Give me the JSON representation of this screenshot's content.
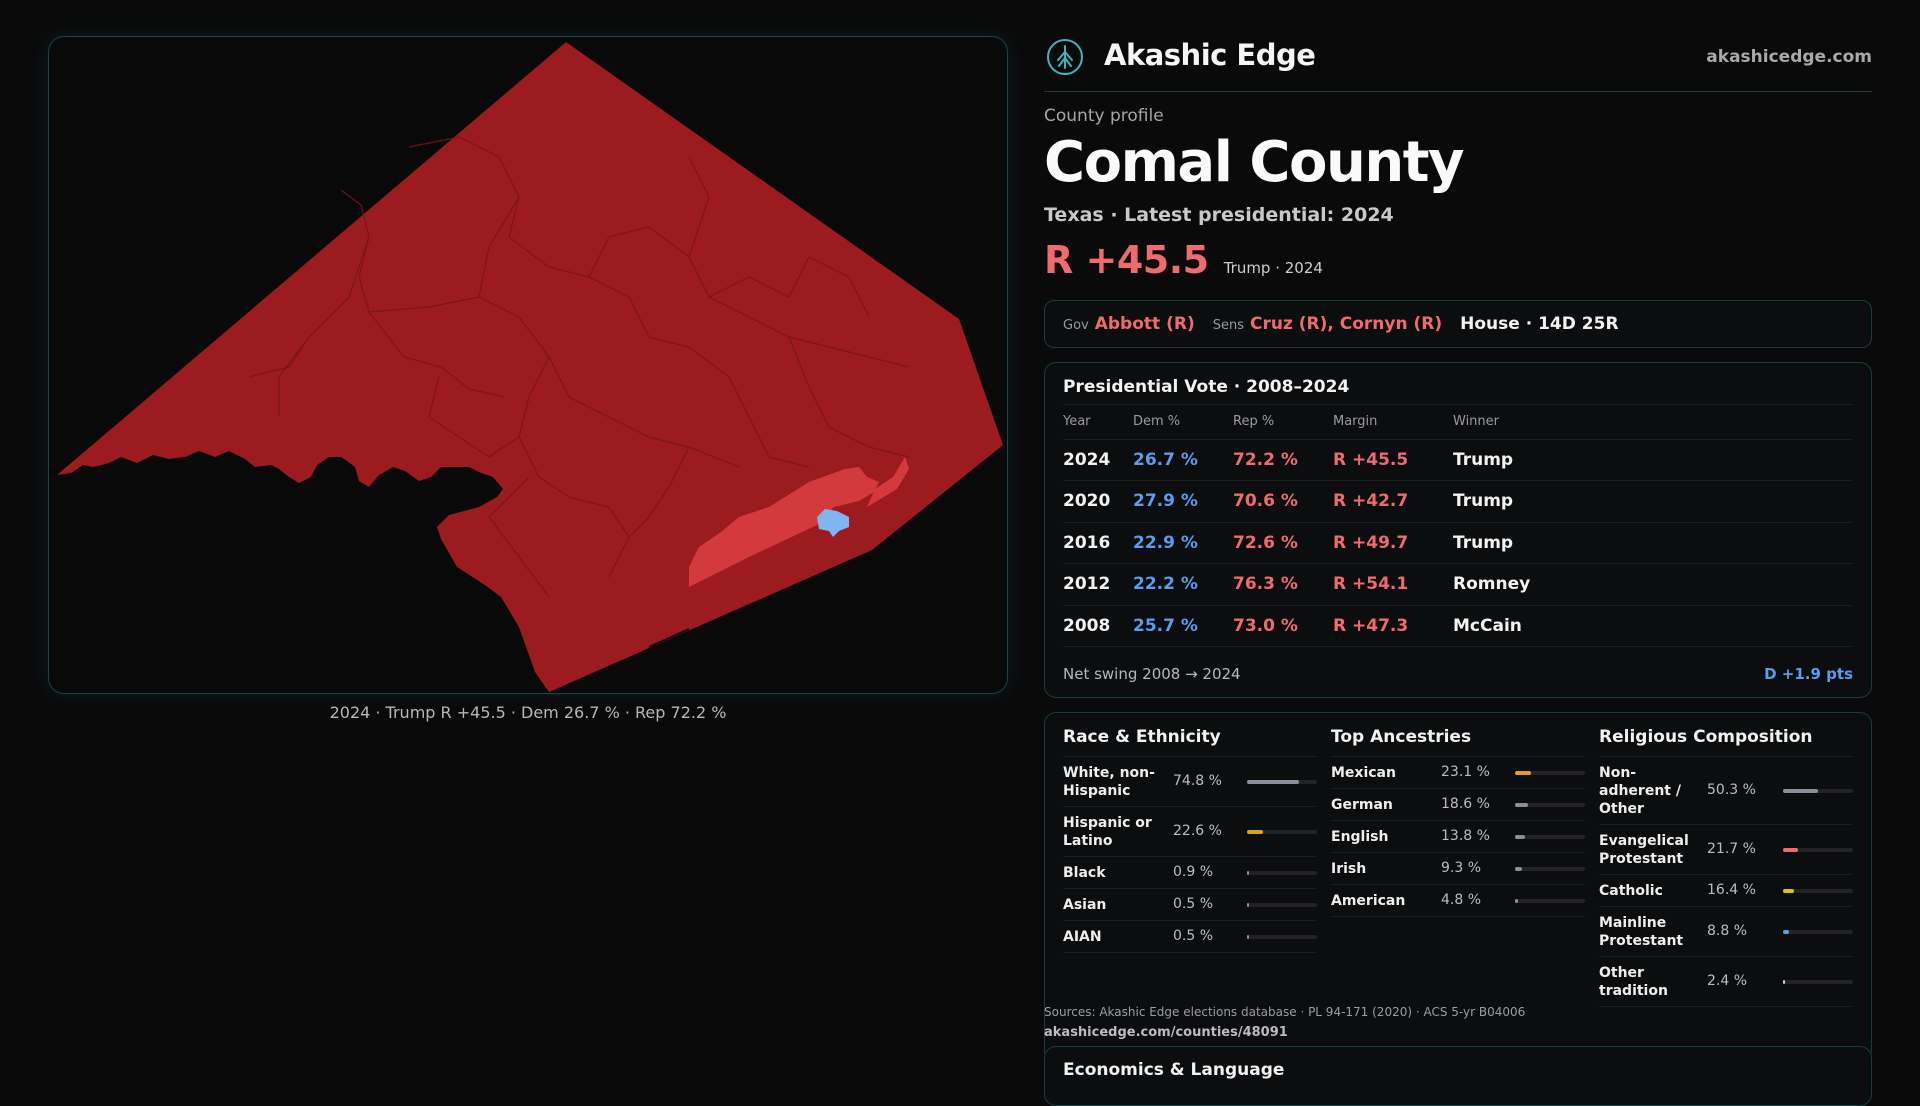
{
  "brand": {
    "name": "Akashic Edge",
    "url": "akashicedge.com",
    "logo_icon": "tree-circle-icon"
  },
  "profile": {
    "kicker": "County profile",
    "title": "Comal County",
    "subline": "Texas · Latest presidential: 2024",
    "margin": "R +45.5",
    "margin_note": "Trump · 2024"
  },
  "officials": {
    "gov_label": "Gov",
    "gov": "Abbott (R)",
    "sens_label": "Sens",
    "sens": "Cruz (R), Cornyn (R)",
    "house": "House · 14D 25R"
  },
  "presidential": {
    "title": "Presidential Vote · 2008–2024",
    "headers": [
      "Year",
      "Dem %",
      "Rep %",
      "Margin",
      "Winner"
    ],
    "rows": [
      {
        "year": "2024",
        "dem": "26.7 %",
        "rep": "72.2 %",
        "margin": "R +45.5",
        "winner": "Trump"
      },
      {
        "year": "2020",
        "dem": "27.9 %",
        "rep": "70.6 %",
        "margin": "R +42.7",
        "winner": "Trump"
      },
      {
        "year": "2016",
        "dem": "22.9 %",
        "rep": "72.6 %",
        "margin": "R +49.7",
        "winner": "Trump"
      },
      {
        "year": "2012",
        "dem": "22.2 %",
        "rep": "76.3 %",
        "margin": "R +54.1",
        "winner": "Romney"
      },
      {
        "year": "2008",
        "dem": "25.7 %",
        "rep": "73.0 %",
        "margin": "R +47.3",
        "winner": "McCain"
      }
    ],
    "swing_label": "Net swing 2008 → 2024",
    "swing_value": "D +1.9 pts"
  },
  "race": {
    "title": "Race & Ethnicity",
    "rows": [
      {
        "label": "White, non-Hispanic",
        "pct": "74.8 %",
        "value": 74.8,
        "color": "#8a8f99"
      },
      {
        "label": "Hispanic or Latino",
        "pct": "22.6 %",
        "value": 22.6,
        "color": "#e0a020"
      },
      {
        "label": "Black",
        "pct": "0.9 %",
        "value": 0.9,
        "color": "#8a8f99"
      },
      {
        "label": "Asian",
        "pct": "0.5 %",
        "value": 0.5,
        "color": "#8a8f99"
      },
      {
        "label": "AIAN",
        "pct": "0.5 %",
        "value": 0.5,
        "color": "#8a8f99"
      }
    ]
  },
  "ancestry": {
    "title": "Top Ancestries",
    "rows": [
      {
        "label": "Mexican",
        "pct": "23.1 %",
        "value": 23.1,
        "color": "#e0a020"
      },
      {
        "label": "German",
        "pct": "18.6 %",
        "value": 18.6,
        "color": "#8a8f99"
      },
      {
        "label": "English",
        "pct": "13.8 %",
        "value": 13.8,
        "color": "#8a8f99"
      },
      {
        "label": "Irish",
        "pct": "9.3 %",
        "value": 9.3,
        "color": "#8a8f99"
      },
      {
        "label": "American",
        "pct": "4.8 %",
        "value": 4.8,
        "color": "#8a8f99"
      }
    ]
  },
  "religion": {
    "title": "Religious Composition",
    "rows": [
      {
        "label": "Non-adherent / Other",
        "pct": "50.3 %",
        "value": 50.3,
        "color": "#8a8f99"
      },
      {
        "label": "Evangelical Protestant",
        "pct": "21.7 %",
        "value": 21.7,
        "color": "#f06a6e"
      },
      {
        "label": "Catholic",
        "pct": "16.4 %",
        "value": 16.4,
        "color": "#e0c020"
      },
      {
        "label": "Mainline Protestant",
        "pct": "8.8 %",
        "value": 8.8,
        "color": "#5a9df0"
      },
      {
        "label": "Other tradition",
        "pct": "2.4 %",
        "value": 2.4,
        "color": "#cfcfd1"
      }
    ]
  },
  "sources": {
    "text": "Sources: Akashic Edge elections database · PL 94-171 (2020) · ACS 5-yr B04006",
    "url": "akashicedge.com/counties/48091"
  },
  "economics": {
    "title": "Economics & Language"
  },
  "map": {
    "caption": "2024 · Trump R +45.5 · Dem 26.7 % · Rep 72.2 %",
    "fill_color": "#9b1b1f",
    "city_color": "#d43a3d",
    "dem_precinct_color": "#7fb6f2"
  }
}
